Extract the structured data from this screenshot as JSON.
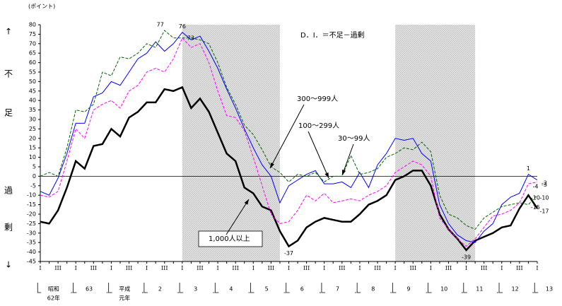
{
  "chart_data": {
    "type": "line",
    "unit_label": "(ポイント)",
    "annotation": "D．I．＝不足－過剰",
    "side_labels": [
      "↑",
      "不",
      "足",
      "過",
      "剰",
      "↓"
    ],
    "categories": [
      "I",
      null,
      "III",
      null,
      "I",
      null,
      "III",
      null,
      "I",
      null,
      "III",
      null,
      "I",
      null,
      "III",
      null,
      "I",
      null,
      "III",
      null,
      "I",
      null,
      "III",
      null,
      "I",
      null,
      "III",
      null,
      "I",
      null,
      "III",
      null,
      "I",
      null,
      "III",
      null,
      "I",
      null,
      "III",
      null,
      "I",
      null,
      "III",
      null,
      "I",
      null,
      "III",
      null,
      "I",
      null,
      "III",
      null,
      "I",
      null,
      "III",
      null,
      "I"
    ],
    "year_labels": [
      [
        "昭和",
        "62年"
      ],
      [
        "63"
      ],
      [
        "平成",
        "元年"
      ],
      [
        "2"
      ],
      [
        "3"
      ],
      [
        "4"
      ],
      [
        "5"
      ],
      [
        "6"
      ],
      [
        "7"
      ],
      [
        "8"
      ],
      [
        "9"
      ],
      [
        "10"
      ],
      [
        "11"
      ],
      [
        "12"
      ],
      [
        "13"
      ]
    ],
    "shaded": [
      [
        16,
        27
      ],
      [
        40,
        49
      ]
    ],
    "ylim": [
      -45,
      80
    ],
    "yticks": [
      -45,
      -40,
      -35,
      -30,
      -25,
      -20,
      -15,
      -10,
      -5,
      0,
      5,
      10,
      15,
      20,
      25,
      30,
      35,
      40,
      45,
      50,
      55,
      60,
      65,
      70,
      75,
      80
    ],
    "zero_line": true,
    "series": [
      {
        "name": "1,000人以上",
        "color": "#000000",
        "dash": false,
        "width": 2.5,
        "values": [
          -24,
          -25,
          -18,
          -6,
          8,
          4,
          16,
          17,
          25,
          21,
          31,
          34,
          39,
          39,
          46,
          45,
          47,
          36,
          41,
          34,
          23,
          12,
          8,
          -6,
          -9,
          -16,
          -18,
          -29,
          -37,
          -34,
          -27,
          -24,
          -22,
          -23,
          -24,
          -24,
          -20,
          -15,
          -13,
          -10,
          -2,
          0,
          3,
          3,
          -5,
          -20,
          -28,
          -33,
          -39,
          -34,
          -32,
          -30,
          -27,
          -26,
          -17,
          -10,
          -17
        ],
        "labeled": [
          28,
          48,
          55,
          56
        ]
      },
      {
        "name": "300～999人",
        "color": "#0000ff",
        "dash": false,
        "width": 1,
        "values": [
          -8,
          -10,
          -1,
          12,
          28,
          28,
          42,
          44,
          50,
          48,
          55,
          62,
          65,
          71,
          66,
          70,
          76,
          72,
          74,
          66,
          57,
          46,
          36,
          25,
          15,
          6,
          0,
          -14,
          -5,
          -2,
          1,
          3,
          -4,
          -4,
          -3,
          -6,
          2,
          -6,
          6,
          12,
          20,
          19,
          20,
          12,
          8,
          -15,
          -25,
          -31,
          -34,
          -35,
          -29,
          -25,
          -15,
          -11,
          -9,
          1,
          -2
        ],
        "labeled": [
          16,
          55,
          56
        ]
      },
      {
        "name": "100～299人",
        "color": "#ff00ff",
        "dash": true,
        "width": 1,
        "values": [
          -10,
          -11,
          -8,
          8,
          25,
          20,
          35,
          38,
          40,
          36,
          45,
          48,
          55,
          57,
          55,
          62,
          73,
          68,
          70,
          60,
          45,
          32,
          31,
          24,
          10,
          -5,
          -20,
          -25,
          -24,
          -18,
          -10,
          -13,
          -9,
          -14,
          -13,
          -12,
          -13,
          -10,
          -8,
          -5,
          2,
          5,
          8,
          6,
          0,
          -22,
          -28,
          -33,
          -37,
          -33,
          -27,
          -21,
          -20,
          -18,
          -14,
          -4,
          -3
        ],
        "labeled": [
          16,
          55,
          56
        ]
      },
      {
        "name": "30～99人",
        "color": "#006400",
        "dash": true,
        "width": 1,
        "values": [
          0,
          2,
          0,
          15,
          35,
          34,
          38,
          55,
          53,
          63,
          62,
          65,
          70,
          68,
          77,
          73,
          73,
          73,
          72,
          70,
          60,
          47,
          38,
          27,
          22,
          14,
          5,
          2,
          -3,
          1,
          0,
          2,
          -3,
          0,
          0,
          11,
          1,
          2,
          4,
          10,
          12,
          15,
          14,
          18,
          13,
          -10,
          -20,
          -22,
          -26,
          -28,
          -22,
          -19,
          -16,
          -15,
          -14,
          -15,
          -10
        ],
        "labeled": [
          14,
          55,
          56
        ]
      }
    ]
  }
}
